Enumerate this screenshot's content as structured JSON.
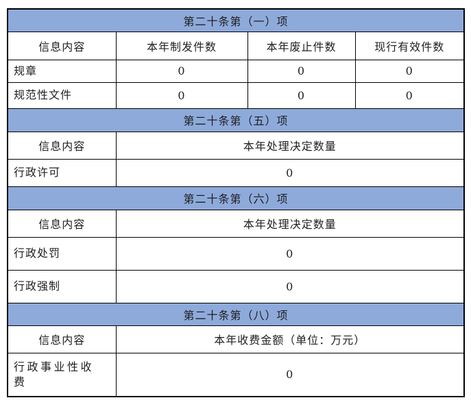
{
  "colors": {
    "section_header_bg": "#8EAADB",
    "grid_border": "#000000",
    "text": "#1F1F1F"
  },
  "sections": [
    {
      "title": "第二十条第（一）项",
      "header": [
        "信息内容",
        "本年制发件数",
        "本年废止件数",
        "现行有效件数"
      ],
      "rows": [
        {
          "label": "规章",
          "values": [
            "0",
            "0",
            "0"
          ]
        },
        {
          "label": "规范性文件",
          "values": [
            "0",
            "0",
            "0"
          ]
        }
      ]
    },
    {
      "title": "第二十条第（五）项",
      "header": [
        "信息内容",
        "本年处理决定数量"
      ],
      "rows": [
        {
          "label": "行政许可",
          "values": [
            "0"
          ]
        }
      ]
    },
    {
      "title": "第二十条第（六）项",
      "header": [
        "信息内容",
        "本年处理决定数量"
      ],
      "rows": [
        {
          "label": "行政处罚",
          "values": [
            "0"
          ]
        },
        {
          "label": "行政强制",
          "values": [
            "0"
          ]
        }
      ]
    },
    {
      "title": "第二十条第（八）项",
      "header": [
        "信息内容",
        "本年收费金额（单位：万元）"
      ],
      "rows": [
        {
          "label": "行政事业性收费",
          "values": [
            "0"
          ]
        }
      ]
    }
  ]
}
